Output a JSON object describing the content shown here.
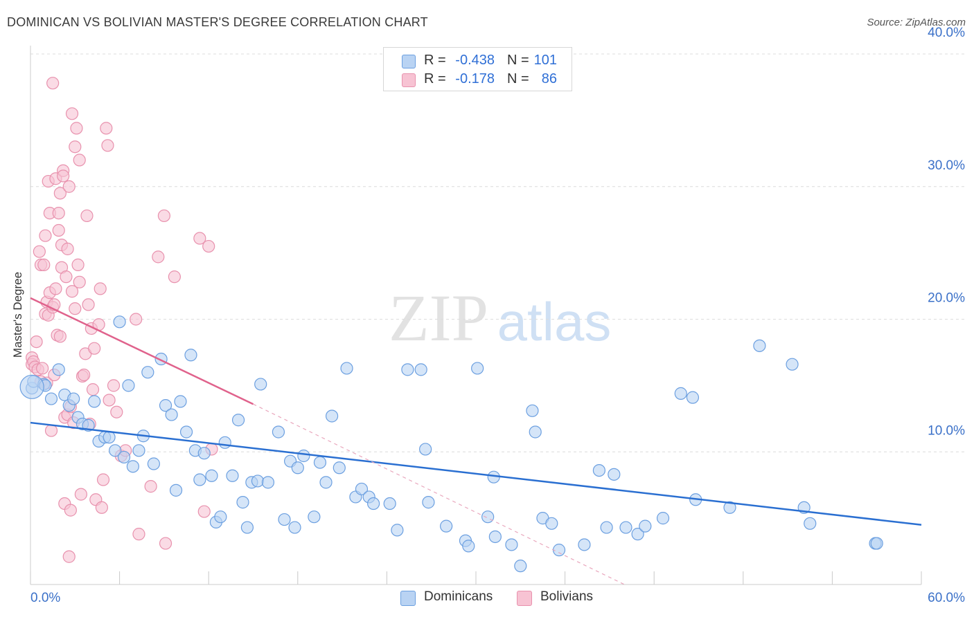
{
  "title": "DOMINICAN VS BOLIVIAN MASTER'S DEGREE CORRELATION CHART",
  "source": "Source: ZipAtlas.com",
  "watermark": {
    "zip": "ZIP",
    "atlas": "atlas"
  },
  "legend": {
    "rows": [
      {
        "r_label": "R =",
        "r_value": "-0.438",
        "n_label": "N =",
        "n_value": "101",
        "fill": "#b9d3f3",
        "stroke": "#6b9fe0"
      },
      {
        "r_label": "R =",
        "r_value": "-0.178",
        "n_label": "N =",
        "n_value": "86",
        "fill": "#f7c3d3",
        "stroke": "#e891ad"
      }
    ]
  },
  "bottom_legend": [
    {
      "label": "Dominicans",
      "fill": "#b9d3f3",
      "stroke": "#6b9fe0"
    },
    {
      "label": "Bolivians",
      "fill": "#f7c3d3",
      "stroke": "#e891ad"
    }
  ],
  "colors": {
    "blue_point_fill": "#b9d3f3",
    "blue_point_stroke": "#6b9fe0",
    "blue_line": "#2a6fd1",
    "pink_point_fill": "#f7c3d3",
    "pink_point_stroke": "#e891ad",
    "pink_line": "#e0628c",
    "tick_label": "#3a70c8",
    "grid": "#dcdcdc"
  },
  "chart_data": {
    "type": "scatter",
    "title": "DOMINICAN VS BOLIVIAN MASTER'S DEGREE CORRELATION CHART",
    "xlabel": "",
    "ylabel": "Master's Degree",
    "xlim": [
      0,
      60
    ],
    "ylim": [
      0,
      40
    ],
    "x_tick_labels": [
      "0.0%",
      "60.0%"
    ],
    "y_ticks": [
      10,
      20,
      30,
      40
    ],
    "y_tick_labels": [
      "10.0%",
      "20.0%",
      "30.0%",
      "40.0%"
    ],
    "grid": true,
    "series": [
      {
        "name": "Dominicans",
        "r": -0.438,
        "n": 101,
        "trend": {
          "x": [
            0,
            60
          ],
          "y": [
            12.2,
            4.5
          ],
          "dashed_from_x": null
        },
        "points": [
          [
            0.1,
            14.8
          ],
          [
            0.2,
            15.3
          ],
          [
            0.9,
            15.1
          ],
          [
            1.0,
            15.0
          ],
          [
            1.4,
            14.0
          ],
          [
            1.9,
            16.2
          ],
          [
            2.3,
            14.3
          ],
          [
            2.6,
            13.5
          ],
          [
            2.9,
            14.0
          ],
          [
            3.2,
            12.6
          ],
          [
            3.5,
            12.1
          ],
          [
            3.9,
            12.0
          ],
          [
            4.3,
            13.8
          ],
          [
            4.6,
            10.8
          ],
          [
            5.0,
            11.1
          ],
          [
            5.3,
            11.1
          ],
          [
            5.7,
            10.1
          ],
          [
            6.0,
            19.8
          ],
          [
            6.3,
            9.6
          ],
          [
            6.6,
            15.0
          ],
          [
            6.9,
            8.9
          ],
          [
            7.3,
            10.1
          ],
          [
            7.6,
            11.2
          ],
          [
            7.9,
            16.0
          ],
          [
            8.3,
            9.1
          ],
          [
            8.8,
            17.0
          ],
          [
            9.1,
            13.5
          ],
          [
            9.5,
            12.8
          ],
          [
            9.8,
            7.1
          ],
          [
            10.1,
            13.8
          ],
          [
            10.5,
            11.5
          ],
          [
            10.8,
            17.3
          ],
          [
            11.1,
            10.1
          ],
          [
            11.4,
            7.9
          ],
          [
            11.7,
            9.9
          ],
          [
            12.2,
            8.2
          ],
          [
            12.5,
            4.7
          ],
          [
            12.8,
            5.1
          ],
          [
            13.1,
            10.7
          ],
          [
            13.6,
            8.2
          ],
          [
            14.0,
            12.4
          ],
          [
            14.3,
            6.2
          ],
          [
            14.6,
            4.3
          ],
          [
            14.9,
            7.7
          ],
          [
            15.3,
            7.8
          ],
          [
            15.5,
            15.1
          ],
          [
            16.0,
            7.7
          ],
          [
            16.7,
            11.5
          ],
          [
            17.1,
            4.9
          ],
          [
            17.5,
            9.3
          ],
          [
            17.8,
            4.3
          ],
          [
            18.0,
            8.8
          ],
          [
            18.4,
            9.7
          ],
          [
            19.1,
            5.1
          ],
          [
            19.5,
            9.2
          ],
          [
            19.9,
            7.7
          ],
          [
            20.3,
            12.7
          ],
          [
            20.8,
            8.8
          ],
          [
            21.3,
            16.3
          ],
          [
            21.9,
            6.6
          ],
          [
            22.3,
            7.2
          ],
          [
            22.8,
            6.6
          ],
          [
            23.1,
            6.1
          ],
          [
            24.2,
            6.1
          ],
          [
            24.7,
            4.1
          ],
          [
            25.4,
            16.2
          ],
          [
            26.3,
            16.2
          ],
          [
            26.6,
            10.2
          ],
          [
            26.8,
            6.2
          ],
          [
            28.0,
            4.4
          ],
          [
            29.3,
            3.3
          ],
          [
            29.5,
            2.9
          ],
          [
            30.1,
            16.3
          ],
          [
            30.8,
            5.1
          ],
          [
            31.2,
            8.1
          ],
          [
            31.3,
            3.6
          ],
          [
            32.4,
            3.0
          ],
          [
            33.0,
            1.4
          ],
          [
            33.8,
            13.1
          ],
          [
            34.0,
            11.5
          ],
          [
            34.5,
            5.0
          ],
          [
            35.1,
            4.6
          ],
          [
            35.6,
            2.6
          ],
          [
            37.3,
            3.0
          ],
          [
            38.3,
            8.6
          ],
          [
            38.8,
            4.3
          ],
          [
            39.3,
            8.3
          ],
          [
            40.1,
            4.3
          ],
          [
            40.9,
            3.8
          ],
          [
            41.4,
            4.4
          ],
          [
            42.6,
            5.0
          ],
          [
            43.8,
            14.4
          ],
          [
            44.6,
            14.1
          ],
          [
            44.8,
            6.4
          ],
          [
            47.1,
            5.8
          ],
          [
            49.1,
            18.0
          ],
          [
            51.3,
            16.6
          ],
          [
            52.1,
            5.8
          ],
          [
            52.5,
            4.6
          ],
          [
            56.9,
            3.1
          ],
          [
            57.0,
            3.1
          ]
        ]
      },
      {
        "name": "Bolivians",
        "r": -0.178,
        "n": 86,
        "trend": {
          "x": [
            0,
            15
          ],
          "y": [
            21.6,
            13.6
          ],
          "dashed_to": [
            40,
            0
          ]
        },
        "points": [
          [
            0.1,
            17.1
          ],
          [
            0.1,
            16.6
          ],
          [
            0.2,
            16.8
          ],
          [
            0.3,
            16.4
          ],
          [
            0.4,
            18.3
          ],
          [
            0.5,
            16.2
          ],
          [
            0.6,
            25.1
          ],
          [
            0.7,
            24.1
          ],
          [
            0.7,
            15.3
          ],
          [
            0.8,
            16.3
          ],
          [
            0.9,
            24.1
          ],
          [
            1.0,
            26.3
          ],
          [
            1.0,
            20.4
          ],
          [
            1.1,
            21.3
          ],
          [
            1.1,
            15.2
          ],
          [
            1.2,
            30.4
          ],
          [
            1.2,
            20.3
          ],
          [
            1.3,
            22.0
          ],
          [
            1.3,
            28.0
          ],
          [
            1.4,
            11.6
          ],
          [
            1.5,
            20.9
          ],
          [
            1.5,
            37.8
          ],
          [
            1.6,
            21.1
          ],
          [
            1.6,
            15.8
          ],
          [
            1.7,
            22.3
          ],
          [
            1.7,
            30.6
          ],
          [
            1.8,
            18.8
          ],
          [
            1.9,
            26.7
          ],
          [
            1.9,
            28.0
          ],
          [
            2.0,
            29.5
          ],
          [
            2.0,
            18.7
          ],
          [
            2.1,
            23.9
          ],
          [
            2.1,
            25.6
          ],
          [
            2.2,
            31.2
          ],
          [
            2.2,
            30.8
          ],
          [
            2.3,
            6.1
          ],
          [
            2.3,
            12.6
          ],
          [
            2.4,
            23.2
          ],
          [
            2.5,
            12.8
          ],
          [
            2.5,
            25.3
          ],
          [
            2.6,
            30.0
          ],
          [
            2.7,
            13.4
          ],
          [
            2.7,
            5.6
          ],
          [
            2.8,
            35.5
          ],
          [
            2.8,
            22.1
          ],
          [
            2.9,
            12.2
          ],
          [
            3.0,
            33.0
          ],
          [
            3.0,
            20.8
          ],
          [
            3.1,
            34.4
          ],
          [
            3.2,
            24.1
          ],
          [
            3.3,
            32.0
          ],
          [
            3.3,
            22.8
          ],
          [
            3.4,
            6.8
          ],
          [
            3.5,
            15.7
          ],
          [
            3.6,
            15.8
          ],
          [
            3.7,
            17.4
          ],
          [
            3.8,
            27.8
          ],
          [
            3.9,
            21.1
          ],
          [
            4.0,
            12.1
          ],
          [
            4.1,
            19.3
          ],
          [
            4.2,
            14.7
          ],
          [
            4.3,
            17.8
          ],
          [
            4.4,
            6.4
          ],
          [
            4.6,
            19.6
          ],
          [
            4.7,
            22.3
          ],
          [
            4.8,
            5.8
          ],
          [
            4.9,
            7.9
          ],
          [
            5.1,
            34.4
          ],
          [
            5.2,
            33.1
          ],
          [
            5.3,
            13.9
          ],
          [
            5.6,
            15.0
          ],
          [
            5.8,
            13.0
          ],
          [
            6.1,
            9.7
          ],
          [
            6.4,
            10.1
          ],
          [
            7.1,
            20.0
          ],
          [
            7.3,
            3.8
          ],
          [
            8.1,
            7.4
          ],
          [
            8.6,
            24.7
          ],
          [
            9.0,
            27.8
          ],
          [
            9.1,
            3.1
          ],
          [
            9.7,
            23.2
          ],
          [
            11.4,
            26.1
          ],
          [
            11.7,
            5.5
          ],
          [
            12.0,
            25.5
          ],
          [
            12.2,
            10.2
          ],
          [
            2.6,
            2.1
          ]
        ]
      }
    ]
  }
}
